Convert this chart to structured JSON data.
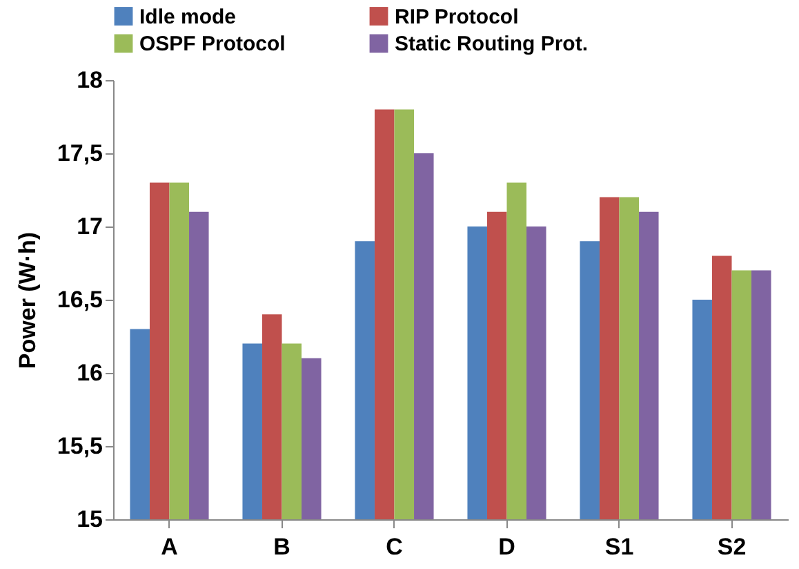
{
  "chart_data": {
    "type": "bar",
    "ylabel": "Power (W·h)",
    "categories": [
      "A",
      "B",
      "C",
      "D",
      "S1",
      "S2"
    ],
    "series": [
      {
        "name": "Idle mode",
        "color": "#4f81bd",
        "values": [
          16.3,
          16.2,
          16.9,
          17.0,
          16.9,
          16.5
        ]
      },
      {
        "name": "RIP Protocol",
        "color": "#c0504d",
        "values": [
          17.3,
          16.4,
          17.8,
          17.1,
          17.2,
          16.8
        ]
      },
      {
        "name": "OSPF Protocol",
        "color": "#9bbb59",
        "values": [
          17.3,
          16.2,
          17.8,
          17.3,
          17.2,
          16.7
        ]
      },
      {
        "name": "Static Routing Prot.",
        "color": "#8064a2",
        "values": [
          17.1,
          16.1,
          17.5,
          17.0,
          17.1,
          16.7
        ]
      }
    ],
    "ylim": [
      15,
      18
    ],
    "yticks": [
      15,
      {
        "value": 15.5,
        "label": "15,5"
      },
      16,
      {
        "value": 16.5,
        "label": "16,5"
      },
      17,
      {
        "value": 17.5,
        "label": "17,5"
      },
      18
    ],
    "legend": "top",
    "grid": false
  }
}
